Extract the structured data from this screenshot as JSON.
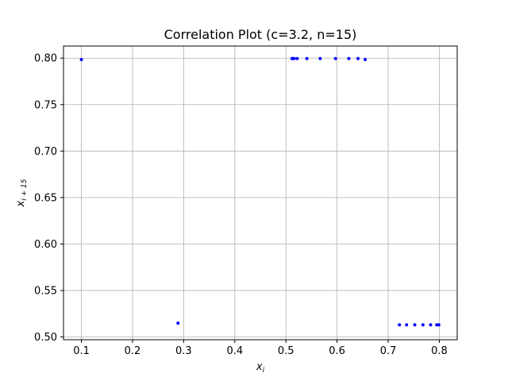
{
  "chart_data": {
    "type": "scatter",
    "title": "Correlation Plot (c=3.2, n=15)",
    "xlabel": {
      "base": "x",
      "sub": "i"
    },
    "ylabel": {
      "base": "x",
      "sub": "i + 15"
    },
    "xlim": [
      0.065,
      0.835
    ],
    "ylim": [
      0.497,
      0.813
    ],
    "xticks": [
      0.1,
      0.2,
      0.3,
      0.4,
      0.5,
      0.6,
      0.7,
      0.8
    ],
    "xtick_labels": [
      "0.1",
      "0.2",
      "0.3",
      "0.4",
      "0.5",
      "0.6",
      "0.7",
      "0.8"
    ],
    "yticks": [
      0.5,
      0.55,
      0.6,
      0.65,
      0.7,
      0.75,
      0.8
    ],
    "ytick_labels": [
      "0.50",
      "0.55",
      "0.60",
      "0.65",
      "0.70",
      "0.75",
      "0.80"
    ],
    "grid": true,
    "marker_color": "#0000ff",
    "points": [
      {
        "x": 0.1,
        "y": 0.7985
      },
      {
        "x": 0.289,
        "y": 0.5148
      },
      {
        "x": 0.512,
        "y": 0.7995
      },
      {
        "x": 0.514,
        "y": 0.7995
      },
      {
        "x": 0.516,
        "y": 0.7995
      },
      {
        "x": 0.522,
        "y": 0.7995
      },
      {
        "x": 0.541,
        "y": 0.7995
      },
      {
        "x": 0.567,
        "y": 0.7995
      },
      {
        "x": 0.597,
        "y": 0.7995
      },
      {
        "x": 0.623,
        "y": 0.7995
      },
      {
        "x": 0.641,
        "y": 0.7995
      },
      {
        "x": 0.655,
        "y": 0.7985
      },
      {
        "x": 0.722,
        "y": 0.513
      },
      {
        "x": 0.736,
        "y": 0.513
      },
      {
        "x": 0.752,
        "y": 0.513
      },
      {
        "x": 0.768,
        "y": 0.513
      },
      {
        "x": 0.783,
        "y": 0.513
      },
      {
        "x": 0.795,
        "y": 0.513
      },
      {
        "x": 0.799,
        "y": 0.513
      }
    ]
  }
}
